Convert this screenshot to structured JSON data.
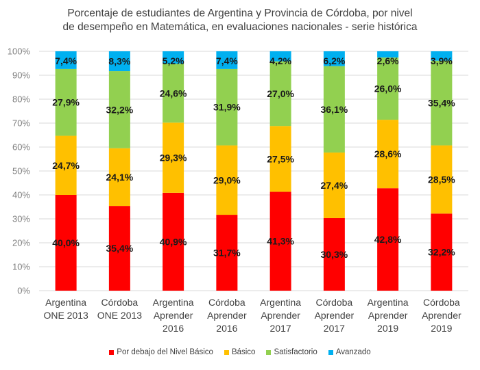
{
  "chart_data": {
    "type": "bar",
    "stacked": true,
    "title": "Porcentaje de estudiantes de Argentina y Provincia de Córdoba, por nivel de desempeño en Matemática, en evaluaciones nacionales - serie histórica",
    "title_lines": [
      "Porcentaje de estudiantes de Argentina y Provincia de Córdoba, por nivel",
      "de desempeño en Matemática, en evaluaciones nacionales - serie histórica"
    ],
    "xlabel": "",
    "ylabel": "",
    "ylim": [
      0,
      100
    ],
    "yticks": [
      "0%",
      "10%",
      "20%",
      "30%",
      "40%",
      "50%",
      "60%",
      "70%",
      "80%",
      "90%",
      "100%"
    ],
    "grid": true,
    "legend_position": "bottom",
    "categories": [
      [
        "Argentina",
        "ONE 2013"
      ],
      [
        "Córdoba",
        "ONE 2013"
      ],
      [
        "Argentina",
        "Aprender",
        "2016"
      ],
      [
        "Córdoba",
        "Aprender",
        "2016"
      ],
      [
        "Argentina",
        "Aprender",
        "2017"
      ],
      [
        "Córdoba",
        "Aprender",
        "2017"
      ],
      [
        "Argentina",
        "Aprender",
        "2019"
      ],
      [
        "Córdoba",
        "Aprender",
        "2019"
      ]
    ],
    "series": [
      {
        "name": "Por debajo del Nivel Básico",
        "color": "#ff0000",
        "values": [
          40.0,
          35.4,
          40.9,
          31.7,
          41.3,
          30.3,
          42.8,
          32.2
        ],
        "labels": [
          "40,0%",
          "35,4%",
          "40,9%",
          "31,7%",
          "41,3%",
          "30,3%",
          "42,8%",
          "32,2%"
        ]
      },
      {
        "name": "Básico",
        "color": "#ffc000",
        "values": [
          24.7,
          24.1,
          29.3,
          29.0,
          27.5,
          27.4,
          28.6,
          28.5
        ],
        "labels": [
          "24,7%",
          "24,1%",
          "29,3%",
          "29,0%",
          "27,5%",
          "27,4%",
          "28,6%",
          "28,5%"
        ]
      },
      {
        "name": "Satisfactorio",
        "color": "#92d050",
        "values": [
          27.9,
          32.2,
          24.6,
          31.9,
          27.0,
          36.1,
          26.0,
          35.4
        ],
        "labels": [
          "27,9%",
          "32,2%",
          "24,6%",
          "31,9%",
          "27,0%",
          "36,1%",
          "26,0%",
          "35,4%"
        ]
      },
      {
        "name": "Avanzado",
        "color": "#00b0f0",
        "values": [
          7.4,
          8.3,
          5.2,
          7.4,
          4.2,
          6.2,
          2.6,
          3.9
        ],
        "labels": [
          "7,4%",
          "8,3%",
          "5,2%",
          "7,4%",
          "4,2%",
          "6,2%",
          "2,6%",
          "3,9%"
        ]
      }
    ]
  }
}
